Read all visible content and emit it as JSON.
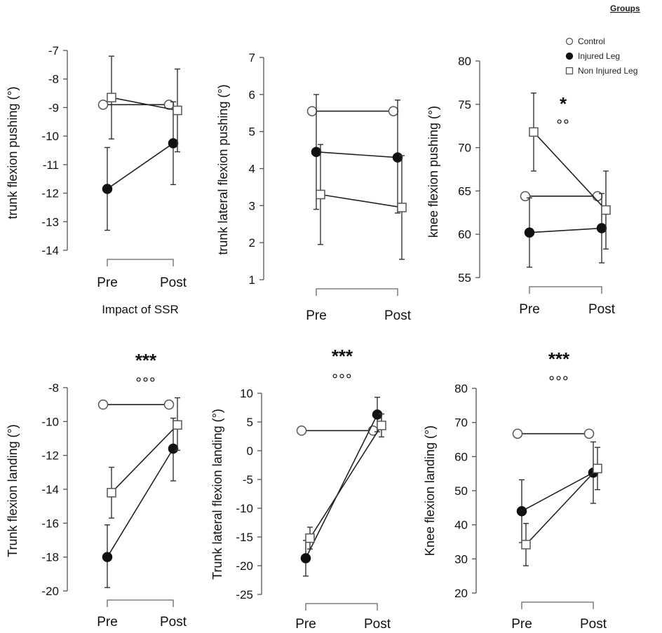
{
  "legend": {
    "title": "Groups",
    "entries": [
      {
        "name": "Control",
        "marker": "circle-open"
      },
      {
        "name": "Injured Leg",
        "marker": "circle-filled"
      },
      {
        "name": "Non Injured Leg",
        "marker": "square-open"
      }
    ]
  },
  "chart_data": [
    {
      "type": "line",
      "ylabel": "trunk flexion pushing (°)",
      "xlabel": "Impact of SSR",
      "categories": [
        "Pre",
        "Post"
      ],
      "ylim": [
        -14,
        -7
      ],
      "yticks": [
        "-14",
        "-13",
        "-12",
        "-11",
        "-10",
        "-9",
        "-8",
        "-7"
      ],
      "sig_top": "",
      "sig_bottom": "",
      "series": [
        {
          "name": "Control",
          "values": [
            -8.9,
            -8.9
          ],
          "err": [
            [
              -8.9,
              -8.9
            ],
            [
              -8.9,
              -8.9
            ]
          ]
        },
        {
          "name": "Injured Leg",
          "values": [
            -11.85,
            -10.25
          ],
          "err": [
            [
              -13.3,
              -10.4
            ],
            [
              -11.7,
              -8.8
            ]
          ]
        },
        {
          "name": "Non Injured Leg",
          "values": [
            -8.65,
            -9.1
          ],
          "err": [
            [
              -10.1,
              -7.2
            ],
            [
              -10.55,
              -7.65
            ]
          ]
        }
      ]
    },
    {
      "type": "line",
      "ylabel": "trunk lateral flexion pushing (°)",
      "xlabel": "",
      "categories": [
        "Pre",
        "Post"
      ],
      "ylim": [
        1,
        7
      ],
      "yticks": [
        "1",
        "2",
        "3",
        "4",
        "5",
        "6",
        "7"
      ],
      "sig_top": "",
      "sig_bottom": "",
      "series": [
        {
          "name": "Control",
          "values": [
            5.55,
            5.55
          ],
          "err": [
            [
              5.55,
              5.55
            ],
            [
              5.55,
              5.55
            ]
          ]
        },
        {
          "name": "Injured Leg",
          "values": [
            4.45,
            4.3
          ],
          "err": [
            [
              2.9,
              6.0
            ],
            [
              2.8,
              5.85
            ]
          ]
        },
        {
          "name": "Non Injured Leg",
          "values": [
            3.3,
            2.95
          ],
          "err": [
            [
              1.95,
              4.65
            ],
            [
              1.55,
              4.35
            ]
          ]
        }
      ]
    },
    {
      "type": "line",
      "ylabel": "knee flexion pushing (°)",
      "xlabel": "",
      "categories": [
        "Pre",
        "Post"
      ],
      "ylim": [
        55,
        80
      ],
      "yticks": [
        "55",
        "60",
        "65",
        "70",
        "75",
        "80"
      ],
      "sig_top": "*",
      "sig_bottom": "°°",
      "series": [
        {
          "name": "Control",
          "values": [
            64.4,
            64.4
          ],
          "err": [
            [
              64.4,
              64.4
            ],
            [
              64.4,
              64.4
            ]
          ]
        },
        {
          "name": "Injured Leg",
          "values": [
            60.2,
            60.7
          ],
          "err": [
            [
              56.2,
              64.2
            ],
            [
              56.7,
              64.7
            ]
          ]
        },
        {
          "name": "Non Injured Leg",
          "values": [
            71.8,
            62.8
          ],
          "err": [
            [
              67.3,
              76.3
            ],
            [
              58.3,
              67.3
            ]
          ]
        }
      ]
    },
    {
      "type": "line",
      "ylabel": "Trunk flexion landing (°)",
      "xlabel": "",
      "categories": [
        "Pre",
        "Post"
      ],
      "ylim": [
        -20,
        -8
      ],
      "yticks": [
        "-20",
        "-18",
        "-16",
        "-14",
        "-12",
        "-10",
        "-8"
      ],
      "sig_top": "***",
      "sig_bottom": "°°°",
      "series": [
        {
          "name": "Control",
          "values": [
            -9.0,
            -9.0
          ],
          "err": [
            [
              -9.0,
              -9.0
            ],
            [
              -9.0,
              -9.0
            ]
          ]
        },
        {
          "name": "Injured Leg",
          "values": [
            -18.0,
            -11.6
          ],
          "err": [
            [
              -19.8,
              -16.1
            ],
            [
              -13.5,
              -9.8
            ]
          ]
        },
        {
          "name": "Non Injured Leg",
          "values": [
            -14.2,
            -10.2
          ],
          "err": [
            [
              -15.7,
              -12.7
            ],
            [
              -11.7,
              -8.6
            ]
          ]
        }
      ]
    },
    {
      "type": "line",
      "ylabel": "Trunk lateral flexion landing (°)",
      "xlabel": "",
      "categories": [
        "Pre",
        "Post"
      ],
      "ylim": [
        -25,
        10
      ],
      "yticks": [
        "-25",
        "-20",
        "-15",
        "-10",
        "-5",
        "0",
        "5",
        "10"
      ],
      "sig_top": "***",
      "sig_bottom": "°°°",
      "series": [
        {
          "name": "Control",
          "values": [
            3.5,
            3.5
          ],
          "err": [
            [
              3.5,
              3.5
            ],
            [
              3.5,
              3.5
            ]
          ]
        },
        {
          "name": "Injured Leg",
          "values": [
            -18.7,
            6.3
          ],
          "err": [
            [
              -21.8,
              -15.6
            ],
            [
              3.3,
              9.3
            ]
          ]
        },
        {
          "name": "Non Injured Leg",
          "values": [
            -15.2,
            4.4
          ],
          "err": [
            [
              -17.1,
              -13.3
            ],
            [
              2.4,
              6.4
            ]
          ]
        }
      ]
    },
    {
      "type": "line",
      "ylabel": "Knee flexion landing (°)",
      "xlabel": "",
      "categories": [
        "Pre",
        "Post"
      ],
      "ylim": [
        20,
        80
      ],
      "yticks": [
        "20",
        "30",
        "40",
        "50",
        "60",
        "70",
        "80"
      ],
      "sig_top": "***",
      "sig_bottom": "°°°",
      "series": [
        {
          "name": "Control",
          "values": [
            66.7,
            66.7
          ],
          "err": [
            [
              66.7,
              66.7
            ],
            [
              66.7,
              66.7
            ]
          ]
        },
        {
          "name": "Injured Leg",
          "values": [
            44.0,
            55.3
          ],
          "err": [
            [
              34.8,
              53.2
            ],
            [
              46.3,
              64.3
            ]
          ]
        },
        {
          "name": "Non Injured Leg",
          "values": [
            34.2,
            56.5
          ],
          "err": [
            [
              28.0,
              40.4
            ],
            [
              50.3,
              62.7
            ]
          ]
        }
      ]
    }
  ]
}
